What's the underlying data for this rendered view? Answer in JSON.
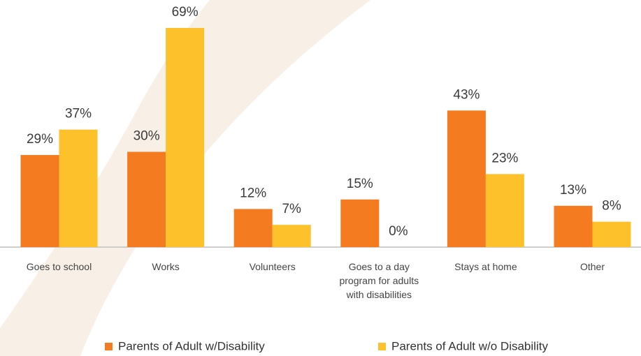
{
  "chart_data": {
    "type": "bar",
    "categories": [
      "Goes to school",
      "Works",
      "Volunteers",
      "Goes to a day program for adults with disabilities",
      "Stays at home",
      "Other"
    ],
    "series": [
      {
        "name": "Parents of Adult w/Disability",
        "color": "#f47b20",
        "values": [
          29,
          30,
          12,
          15,
          43,
          13
        ],
        "value_labels": [
          "29%",
          "30%",
          "12%",
          "15%",
          "43%",
          "13%"
        ]
      },
      {
        "name": "Parents of Adult w/o Disability",
        "color": "#fcc12b",
        "values": [
          37,
          69,
          7,
          0,
          23,
          8
        ],
        "value_labels": [
          "37%",
          "69%",
          "7%",
          "0%",
          "23%",
          "8%"
        ]
      }
    ]
  }
}
